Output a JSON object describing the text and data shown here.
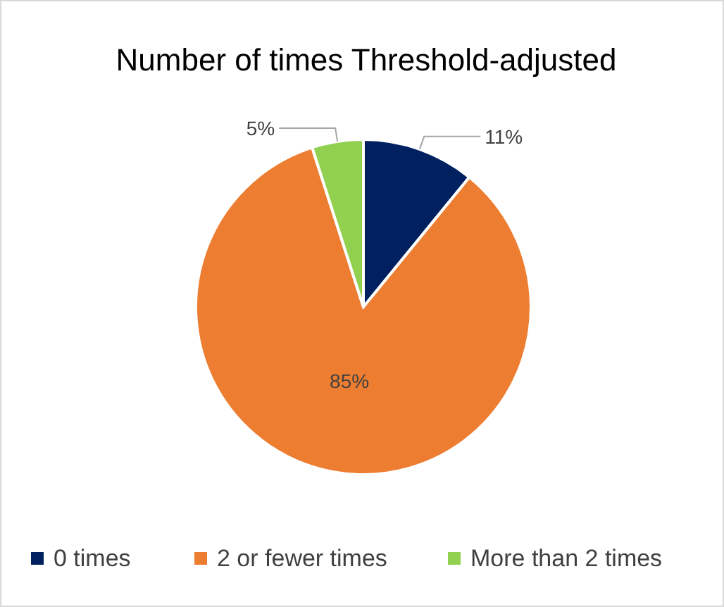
{
  "chart_data": {
    "type": "pie",
    "title": "Number of times Threshold-adjusted",
    "categories": [
      "0 times",
      "2 or fewer times",
      "More than 2 times"
    ],
    "values": [
      11,
      85,
      5
    ],
    "colors": [
      "#002060",
      "#ed7d31",
      "#92d050"
    ],
    "value_labels": [
      "11%",
      "85%",
      "5%"
    ],
    "legend": "bottom"
  }
}
